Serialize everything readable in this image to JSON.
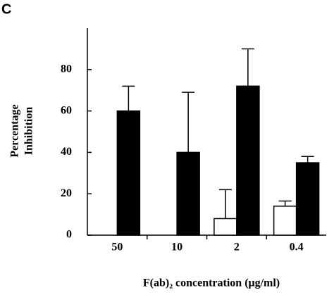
{
  "chart_data": {
    "type": "bar",
    "panel_label": "C",
    "ylabel": [
      "Percentage",
      "Inhibition"
    ],
    "xlabel": "F(ab)₂ concentration (μg/ml)",
    "categories": [
      "50",
      "10",
      "2",
      "0.4"
    ],
    "series": [
      {
        "color": "#ffffff",
        "values": [
          0,
          0,
          8,
          14
        ],
        "errors": [
          null,
          null,
          14,
          2.5
        ]
      },
      {
        "color": "#000000",
        "values": [
          60,
          40,
          72,
          35
        ],
        "errors": [
          12,
          29,
          18,
          3
        ]
      }
    ],
    "ylim": [
      0,
      100
    ],
    "yticks": [
      0,
      20,
      40,
      60,
      80
    ],
    "grid": false
  }
}
